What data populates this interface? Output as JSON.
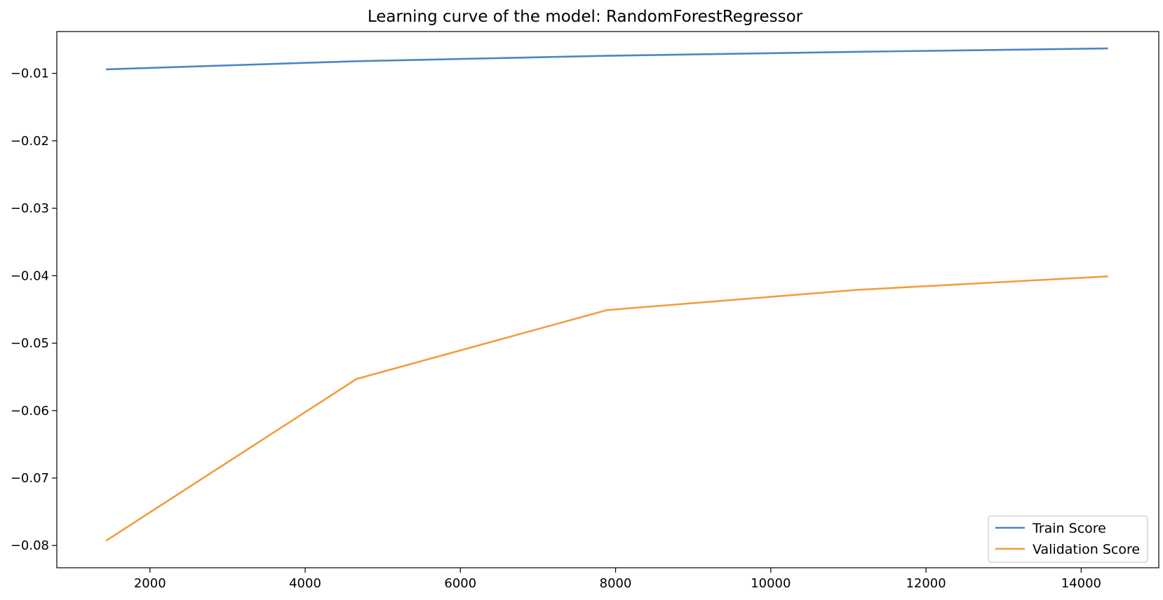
{
  "chart_data": {
    "type": "line",
    "title": "Learning curve of the model: RandomForestRegressor",
    "xlabel": "",
    "ylabel": "",
    "xlim": [
      800,
      15000
    ],
    "ylim": [
      -0.0833,
      -0.0038
    ],
    "grid": false,
    "legend_position": "bottom-right",
    "x_ticks": [
      2000,
      4000,
      6000,
      8000,
      10000,
      12000,
      14000
    ],
    "x_tick_labels": [
      "2000",
      "4000",
      "6000",
      "8000",
      "10000",
      "12000",
      "14000"
    ],
    "y_ticks": [
      -0.01,
      -0.02,
      -0.03,
      -0.04,
      -0.05,
      -0.06,
      -0.07,
      -0.08
    ],
    "y_tick_labels": [
      "−0.01",
      "−0.02",
      "−0.03",
      "−0.04",
      "−0.05",
      "−0.06",
      "−0.07",
      "−0.08"
    ],
    "x": [
      1434,
      4662,
      7890,
      11118,
      14346
    ],
    "series": [
      {
        "name": "Train Score",
        "color": "#4c86c6",
        "values": [
          -0.0094,
          -0.0082,
          -0.0074,
          -0.0068,
          -0.0063
        ]
      },
      {
        "name": "Validation Score",
        "color": "#f39c3f",
        "values": [
          -0.0793,
          -0.0553,
          -0.0451,
          -0.0421,
          -0.0401
        ]
      }
    ]
  }
}
